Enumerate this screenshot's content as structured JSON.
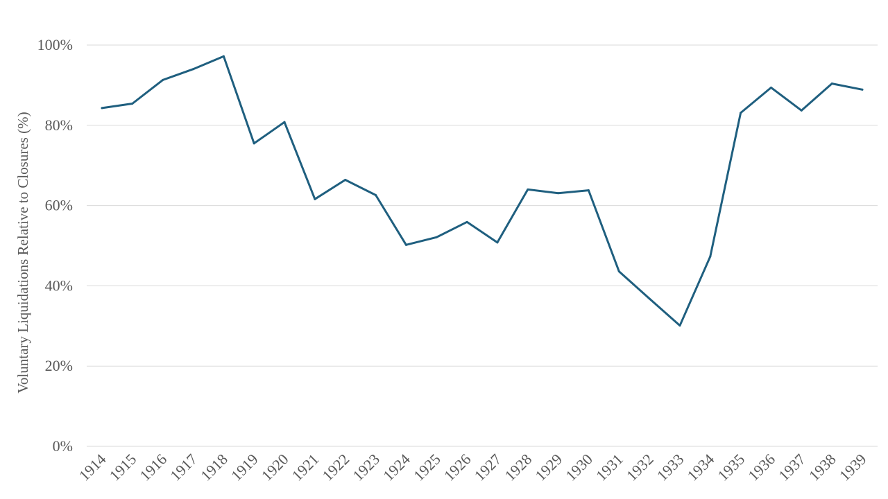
{
  "chart_data": {
    "type": "line",
    "title": "",
    "xlabel": "",
    "ylabel": "Voluntary Liquidations Relative to Closures (%)",
    "ylim": [
      0,
      100
    ],
    "yticks": [
      0,
      20,
      40,
      60,
      80,
      100
    ],
    "ytick_labels": [
      "0%",
      "20%",
      "40%",
      "60%",
      "80%",
      "100%"
    ],
    "grid": true,
    "legend": "none",
    "categories": [
      "1914",
      "1915",
      "1916",
      "1917",
      "1918",
      "1919",
      "1920",
      "1921",
      "1922",
      "1923",
      "1924",
      "1925",
      "1926",
      "1927",
      "1928",
      "1929",
      "1930",
      "1931",
      "1932",
      "1933",
      "1934",
      "1935",
      "1936",
      "1937",
      "1938",
      "1939"
    ],
    "series": [
      {
        "color": "#1f5f7f",
        "values": [
          84.3,
          85.4,
          91.3,
          94.0,
          97.2,
          75.5,
          80.8,
          61.6,
          66.4,
          62.6,
          50.2,
          52.1,
          55.9,
          50.8,
          64.0,
          63.1,
          63.8,
          43.6,
          36.8,
          30.1,
          47.3,
          83.1,
          89.4,
          83.7,
          90.4,
          88.9
        ]
      }
    ]
  }
}
